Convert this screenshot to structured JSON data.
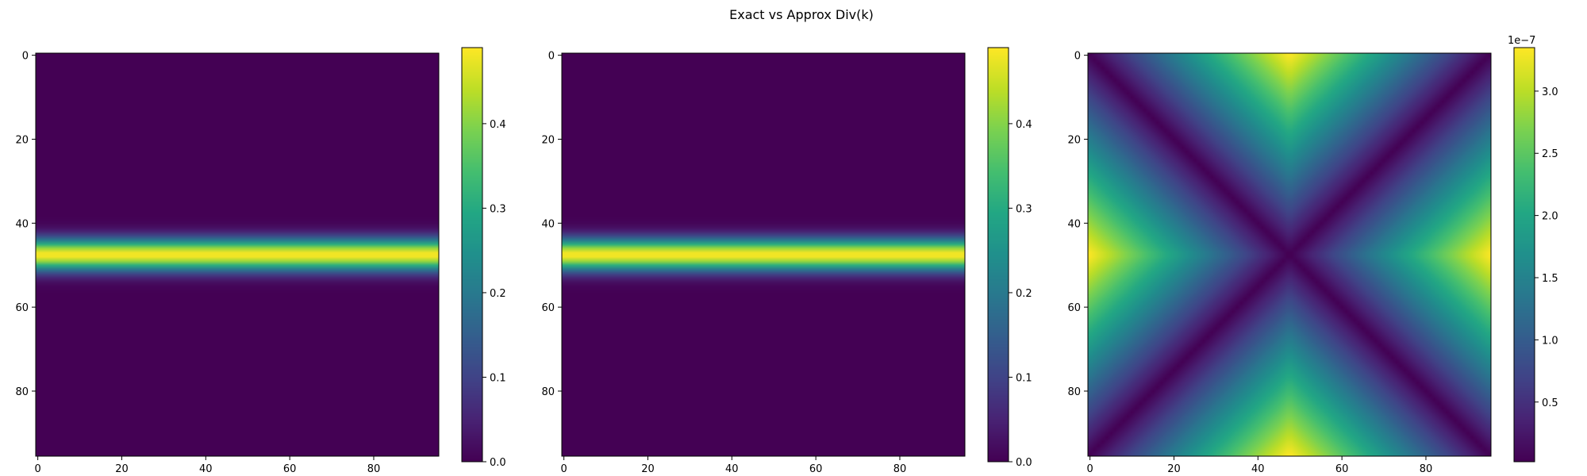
{
  "figure": {
    "title": "Exact vs Approx Div(k)"
  },
  "chart_data": [
    {
      "type": "heatmap",
      "panel": "exact",
      "grid_size": [
        96,
        96
      ],
      "field": "gaussian band along rows",
      "band_center_row": 47.5,
      "band_sigma_rows": 2.6,
      "peak_value": 0.49,
      "xlim": [
        -0.5,
        95.5
      ],
      "ylim": [
        95.5,
        -0.5
      ],
      "xticks": [
        0,
        20,
        40,
        60,
        80
      ],
      "yticks": [
        0,
        20,
        40,
        60,
        80
      ],
      "colormap": "viridis",
      "colorbar": {
        "vmin": 0.0,
        "vmax": 0.49,
        "ticks": [
          0.0,
          0.1,
          0.2,
          0.3,
          0.4
        ],
        "tick_labels": [
          "0.0",
          "0.1",
          "0.2",
          "0.3",
          "0.4"
        ],
        "offset_label": ""
      }
    },
    {
      "type": "heatmap",
      "panel": "approx",
      "grid_size": [
        96,
        96
      ],
      "field": "gaussian band along rows",
      "band_center_row": 47.5,
      "band_sigma_rows": 2.6,
      "peak_value": 0.49,
      "xlim": [
        -0.5,
        95.5
      ],
      "ylim": [
        95.5,
        -0.5
      ],
      "xticks": [
        0,
        20,
        40,
        60,
        80
      ],
      "yticks": [
        0,
        20,
        40,
        60,
        80
      ],
      "colormap": "viridis",
      "colorbar": {
        "vmin": 0.0,
        "vmax": 0.49,
        "ticks": [
          0.0,
          0.1,
          0.2,
          0.3,
          0.4
        ],
        "tick_labels": [
          "0.0",
          "0.1",
          "0.2",
          "0.3",
          "0.4"
        ],
        "offset_label": ""
      }
    },
    {
      "type": "heatmap",
      "panel": "difference",
      "grid_size": [
        96,
        96
      ],
      "field": "V-shaped error, minimum along |x - 47.5| = |y - 47.5|",
      "corner_max_value": 3.35e-07,
      "xlim": [
        -0.5,
        95.5
      ],
      "ylim": [
        95.5,
        -0.5
      ],
      "xticks": [
        0,
        20,
        40,
        60,
        80
      ],
      "yticks": [
        0,
        20,
        40,
        60,
        80
      ],
      "colormap": "viridis",
      "colorbar": {
        "vmin": 2e-09,
        "vmax": 3.35e-07,
        "ticks": [
          5e-08,
          1e-07,
          1.5e-07,
          2e-07,
          2.5e-07,
          3e-07
        ],
        "tick_labels": [
          "0.5",
          "1.0",
          "1.5",
          "2.0",
          "2.5",
          "3.0"
        ],
        "offset_label": "1e−7"
      }
    }
  ]
}
